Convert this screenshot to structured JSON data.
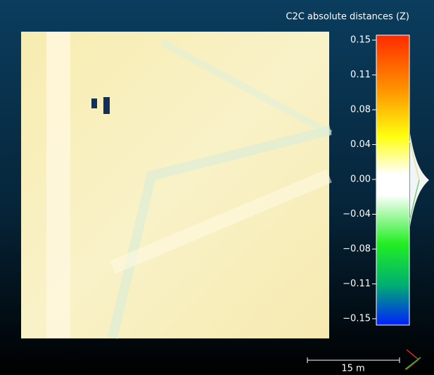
{
  "colorbar": {
    "title": "C2C absolute distances (Z)",
    "ticks": [
      "0.15",
      "0.11",
      "0.08",
      "0.04",
      "0.00",
      "−0.04",
      "−0.08",
      "−0.11",
      "−0.15"
    ]
  },
  "scale_bar": {
    "label": "15 m"
  }
}
